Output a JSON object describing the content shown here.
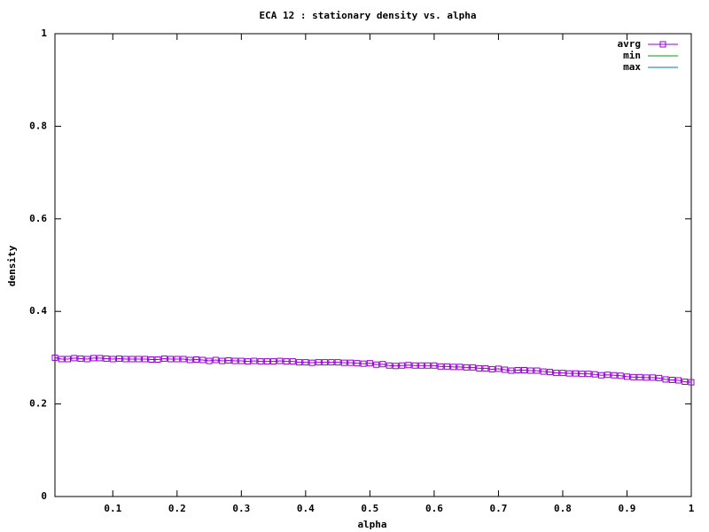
{
  "chart_data": {
    "type": "line",
    "title": "ECA 12 : stationary density vs. alpha",
    "x_label": "alpha",
    "y_label": "density",
    "x": [
      0.01,
      0.02,
      0.03,
      0.04,
      0.05,
      0.06,
      0.07,
      0.08,
      0.09,
      0.1,
      0.11,
      0.12,
      0.13,
      0.14,
      0.15,
      0.16,
      0.17,
      0.18,
      0.19,
      0.2,
      0.21,
      0.22,
      0.23,
      0.24,
      0.25,
      0.26,
      0.27,
      0.28,
      0.29,
      0.3,
      0.31,
      0.32,
      0.33,
      0.34,
      0.35,
      0.36,
      0.37,
      0.38,
      0.39,
      0.4,
      0.41,
      0.42,
      0.43,
      0.44,
      0.45,
      0.46,
      0.47,
      0.48,
      0.49,
      0.5,
      0.51,
      0.52,
      0.53,
      0.54,
      0.55,
      0.56,
      0.57,
      0.58,
      0.59,
      0.6,
      0.61,
      0.62,
      0.63,
      0.64,
      0.65,
      0.66,
      0.67,
      0.68,
      0.69,
      0.7,
      0.71,
      0.72,
      0.73,
      0.74,
      0.75,
      0.76,
      0.77,
      0.78,
      0.79,
      0.8,
      0.81,
      0.82,
      0.83,
      0.84,
      0.85,
      0.86,
      0.87,
      0.88,
      0.89,
      0.9,
      0.91,
      0.92,
      0.93,
      0.94,
      0.95,
      0.96,
      0.97,
      0.98,
      0.99,
      1.0
    ],
    "series": [
      {
        "name": "avrg",
        "color": "#9400d3",
        "marker": "square",
        "values": [
          0.3,
          0.297,
          0.297,
          0.299,
          0.298,
          0.297,
          0.299,
          0.299,
          0.298,
          0.297,
          0.298,
          0.297,
          0.297,
          0.297,
          0.297,
          0.296,
          0.296,
          0.298,
          0.297,
          0.297,
          0.297,
          0.295,
          0.296,
          0.295,
          0.293,
          0.295,
          0.293,
          0.294,
          0.293,
          0.293,
          0.292,
          0.293,
          0.292,
          0.292,
          0.292,
          0.293,
          0.292,
          0.292,
          0.29,
          0.29,
          0.289,
          0.29,
          0.29,
          0.29,
          0.29,
          0.289,
          0.289,
          0.288,
          0.287,
          0.288,
          0.285,
          0.286,
          0.283,
          0.282,
          0.283,
          0.284,
          0.283,
          0.283,
          0.283,
          0.283,
          0.281,
          0.281,
          0.28,
          0.28,
          0.279,
          0.279,
          0.277,
          0.277,
          0.275,
          0.276,
          0.274,
          0.272,
          0.273,
          0.273,
          0.272,
          0.272,
          0.27,
          0.269,
          0.267,
          0.267,
          0.266,
          0.266,
          0.265,
          0.265,
          0.264,
          0.262,
          0.263,
          0.262,
          0.261,
          0.259,
          0.258,
          0.258,
          0.257,
          0.257,
          0.256,
          0.253,
          0.252,
          0.251,
          0.248,
          0.247
        ]
      },
      {
        "name": "min",
        "color": "#009e00"
      },
      {
        "name": "max",
        "color": "#0072d8"
      }
    ],
    "xlim": [
      0.01,
      1
    ],
    "xticks": [
      0.1,
      0.2,
      0.3,
      0.4,
      0.5,
      0.6,
      0.7,
      0.8,
      0.9,
      1
    ],
    "ylim": [
      0,
      1
    ],
    "yticks": [
      0,
      0.2,
      0.4,
      0.6,
      0.8,
      1
    ],
    "legend": "top-right"
  }
}
